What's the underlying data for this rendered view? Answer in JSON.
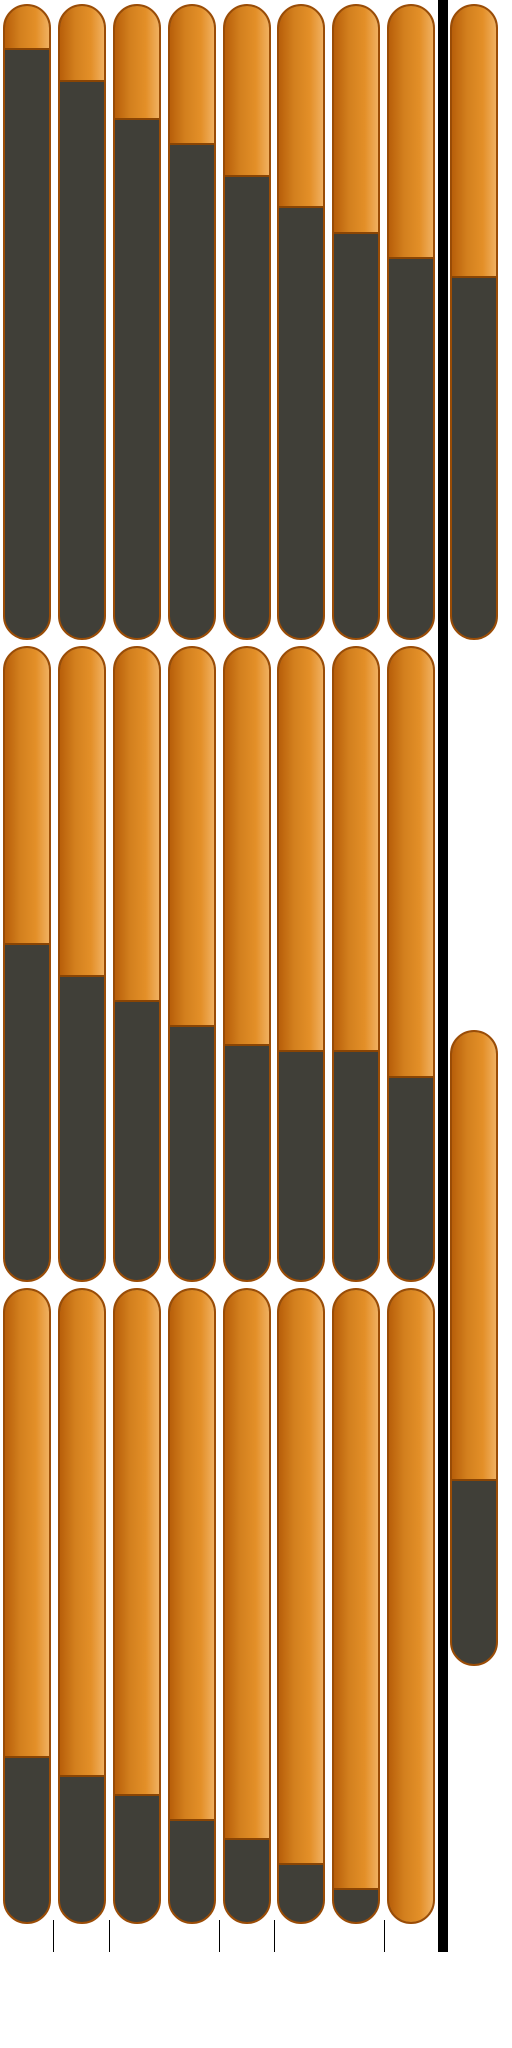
{
  "palette": {
    "empty": "#403f38",
    "fill_start": "#b85f0a",
    "fill_mid": "#e38f28",
    "fill_end": "#f0b060",
    "outline": "#9a4c06"
  },
  "bar_groups": [
    {
      "name": "row-1",
      "levels": [
        0.07,
        0.12,
        0.18,
        0.22,
        0.27,
        0.32,
        0.36,
        0.4
      ]
    },
    {
      "name": "row-2",
      "levels": [
        0.47,
        0.52,
        0.56,
        0.6,
        0.63,
        0.64,
        0.64,
        0.68
      ]
    },
    {
      "name": "row-3",
      "levels": [
        0.74,
        0.77,
        0.8,
        0.84,
        0.87,
        0.91,
        0.95,
        1.0
      ]
    },
    {
      "name": "side",
      "levels": [
        0.43,
        0.71
      ]
    }
  ]
}
